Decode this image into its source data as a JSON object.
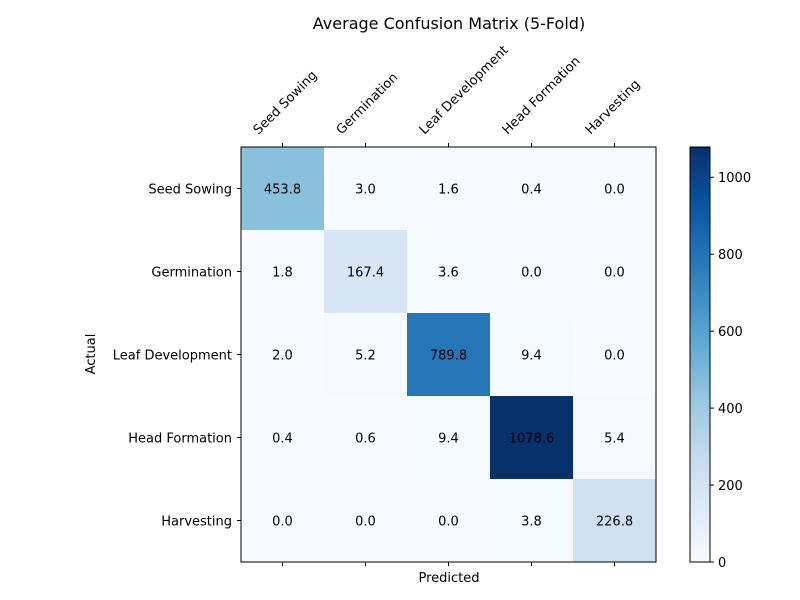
{
  "chart_data": {
    "type": "heatmap",
    "title": "Average Confusion Matrix (5-Fold)",
    "xlabel": "Predicted",
    "ylabel": "Actual",
    "x_categories": [
      "Seed Sowing",
      "Germination",
      "Leaf Development",
      "Head Formation",
      "Harvesting"
    ],
    "y_categories": [
      "Seed Sowing",
      "Germination",
      "Leaf Development",
      "Head Formation",
      "Harvesting"
    ],
    "values": [
      [
        453.8,
        3.0,
        1.6,
        0.4,
        0.0
      ],
      [
        1.8,
        167.4,
        3.6,
        0.0,
        0.0
      ],
      [
        2.0,
        5.2,
        789.8,
        9.4,
        0.0
      ],
      [
        0.4,
        0.6,
        9.4,
        1078.6,
        5.4
      ],
      [
        0.0,
        0.0,
        0.0,
        3.8,
        226.8
      ]
    ],
    "colormap": "Blues",
    "colorbar": {
      "range": [
        0,
        1078.6
      ],
      "ticks": [
        0,
        200,
        400,
        600,
        800,
        1000
      ]
    },
    "x_tick_position": "top",
    "grid": false
  }
}
